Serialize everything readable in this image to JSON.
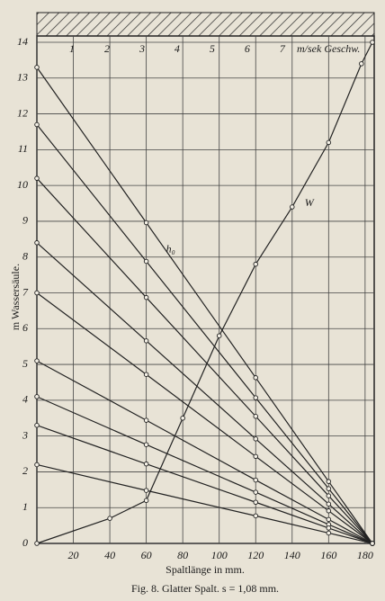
{
  "chart_data": {
    "type": "line",
    "caption": "Fig. 8.  Glatter Spalt.  s = 1,08 mm.",
    "x_label": "Spaltlänge in mm.",
    "y_label": "m Wassersäule.",
    "x2_label": "m/sek Geschw.",
    "xlim": [
      0,
      185
    ],
    "xticks": [
      20,
      40,
      60,
      80,
      100,
      120,
      140,
      160,
      180
    ],
    "xgrid": [
      0,
      20,
      40,
      60,
      80,
      100,
      120,
      140,
      160,
      180
    ],
    "ylim": [
      0,
      14
    ],
    "yticks": [
      0,
      1,
      2,
      3,
      4,
      5,
      6,
      7,
      8,
      9,
      10,
      11,
      12,
      13,
      14
    ],
    "x2lim": [
      0,
      9.62
    ],
    "x2ticks": [
      1,
      2,
      3,
      4,
      5,
      6,
      7
    ],
    "grid": true,
    "color": "#222222",
    "series": [
      {
        "name": "h₀",
        "x": [
          0,
          60,
          120,
          160,
          184
        ],
        "values": [
          13.3,
          8.96,
          4.63,
          1.73,
          0
        ]
      },
      {
        "x": [
          0,
          60,
          120,
          160,
          184
        ],
        "values": [
          11.7,
          7.88,
          4.07,
          1.53,
          0
        ]
      },
      {
        "x": [
          0,
          60,
          120,
          160,
          184
        ],
        "values": [
          10.2,
          6.87,
          3.55,
          1.33,
          0
        ]
      },
      {
        "x": [
          0,
          60,
          120,
          160,
          184
        ],
        "values": [
          8.4,
          5.66,
          2.92,
          1.1,
          0
        ]
      },
      {
        "x": [
          0,
          60,
          120,
          160,
          184
        ],
        "values": [
          7.0,
          4.72,
          2.43,
          0.91,
          0
        ]
      },
      {
        "x": [
          0,
          60,
          120,
          160,
          184
        ],
        "values": [
          5.1,
          3.44,
          1.77,
          0.67,
          0
        ]
      },
      {
        "x": [
          0,
          60,
          120,
          160,
          184
        ],
        "values": [
          4.1,
          2.76,
          1.43,
          0.53,
          0
        ]
      },
      {
        "x": [
          0,
          60,
          120,
          160,
          184
        ],
        "values": [
          3.3,
          2.22,
          1.15,
          0.43,
          0
        ]
      },
      {
        "x": [
          0,
          60,
          120,
          160,
          184
        ],
        "values": [
          2.2,
          1.48,
          0.77,
          0.29,
          0
        ]
      },
      {
        "name": "W",
        "x": [
          0,
          40,
          60,
          80,
          100,
          120,
          140,
          160,
          178,
          184
        ],
        "values": [
          0,
          0.7,
          1.2,
          3.5,
          5.8,
          7.8,
          9.4,
          11.2,
          13.4,
          14
        ]
      }
    ]
  }
}
